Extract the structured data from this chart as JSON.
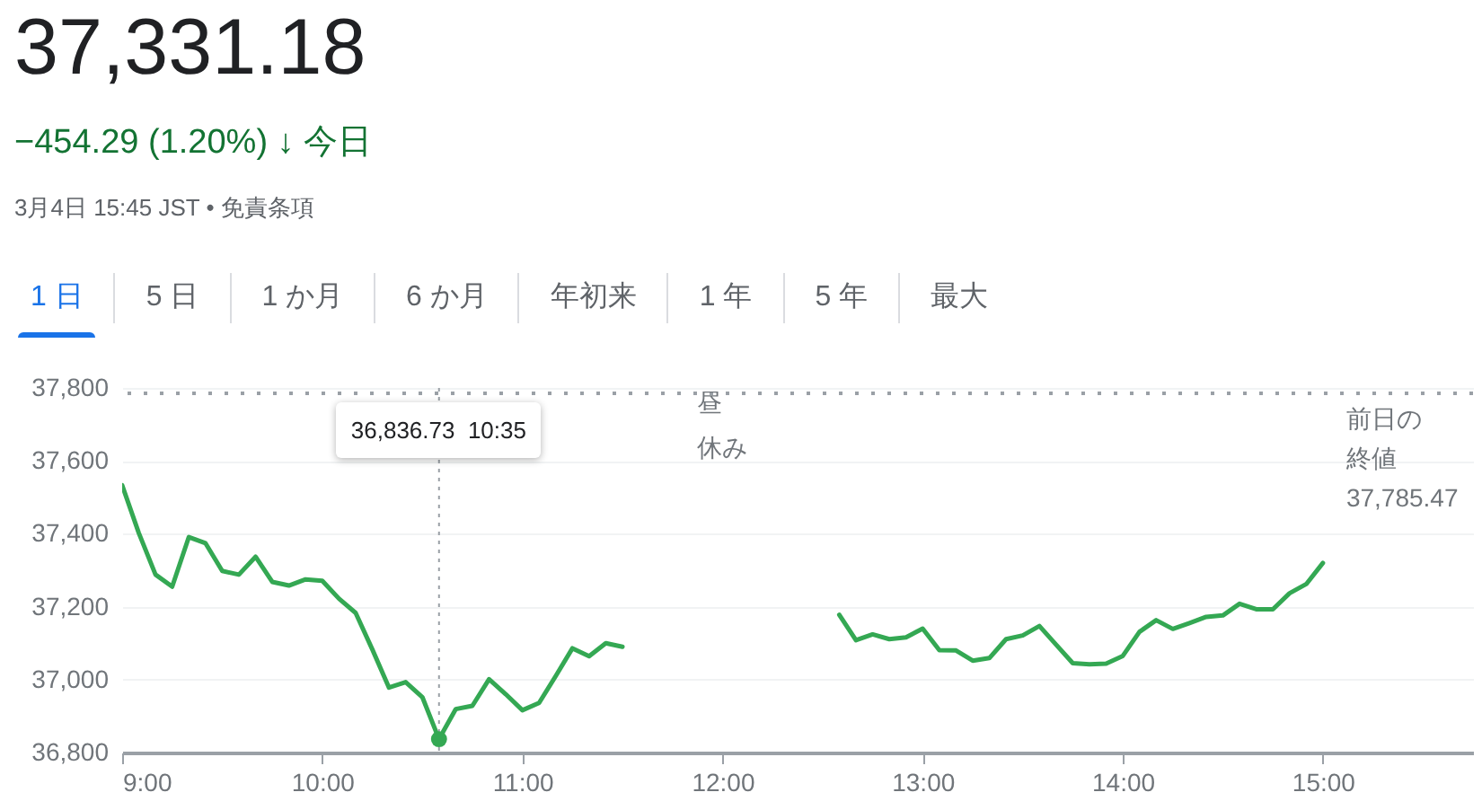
{
  "chart_data": {
    "type": "line",
    "title": "37,331.18",
    "subtitle": "−454.29 (1.20%) ↓ 今日",
    "annotations": [
      "3月4日 15:45 JST • 免責条項",
      "1 日",
      "5 日",
      "1 か月",
      "6 か月",
      "年初来",
      "1 年",
      "5 年",
      "最大",
      "昼",
      "休み",
      {
        "text": "36,836.73  10:35",
        "x": 10.5833,
        "y": 36836.73
      }
    ],
    "x": [
      9,
      9.0833,
      9.1667,
      9.25,
      9.3333,
      9.4167,
      9.5,
      9.5833,
      9.6667,
      9.75,
      9.8333,
      9.9167,
      10,
      10.0833,
      10.1667,
      10.25,
      10.3333,
      10.4167,
      10.5,
      10.5833,
      10.6667,
      10.75,
      10.8333,
      10.9167,
      11,
      11.0833,
      11.1667,
      11.25,
      11.3333,
      11.4167,
      11.5,
      12,
      12.5833,
      12.6667,
      12.75,
      12.8333,
      12.9167,
      13,
      13.0833,
      13.1667,
      13.25,
      13.3333,
      13.4167,
      13.5,
      13.5833,
      13.6667,
      13.75,
      13.8333,
      13.9167,
      14,
      14.0833,
      14.1667,
      14.25,
      14.3333,
      14.4167,
      14.5,
      14.5833,
      14.6667,
      14.75,
      14.8333,
      14.9167,
      15
    ],
    "series": [
      {
        "color": "#34a853",
        "values": [
          37533,
          37402,
          37288,
          37255,
          37391,
          37374,
          37298,
          37288,
          37337,
          37268,
          37258,
          37275,
          37271,
          37222,
          37183,
          37083,
          36978,
          36993,
          36952,
          36836.73,
          36919,
          36928,
          37001,
          36960,
          36916,
          36936,
          37010,
          37086,
          37064,
          37100,
          37090,
          null,
          37178,
          37108,
          37124,
          37111,
          37116,
          37140,
          37081,
          37080,
          37052,
          37059,
          37111,
          37121,
          37147,
          37096,
          37045,
          37042,
          37044,
          37065,
          37131,
          37163,
          37139,
          37155,
          37172,
          37176,
          37208,
          37193,
          37193,
          37237,
          37262,
          37320
        ]
      }
    ],
    "xlim": [
      9,
      15.75
    ],
    "xticks": [
      {
        "value": 9,
        "label": "9:00"
      },
      {
        "value": 10,
        "label": "10:00"
      },
      {
        "value": 11,
        "label": "11:00"
      },
      {
        "value": 12,
        "label": "12:00"
      },
      {
        "value": 13,
        "label": "13:00"
      },
      {
        "value": 14,
        "label": "14:00"
      },
      {
        "value": 15,
        "label": "15:00"
      }
    ],
    "ylim": [
      36800,
      37800
    ],
    "yticks": [
      {
        "value": 36800,
        "label": "36,800"
      },
      {
        "value": 37000,
        "label": "37,000"
      },
      {
        "value": 37200,
        "label": "37,200"
      },
      {
        "value": 37400,
        "label": "37,400"
      },
      {
        "value": 37600,
        "label": "37,600"
      },
      {
        "value": 37800,
        "label": "37,800"
      }
    ],
    "ref_lines": [
      {
        "axis": "y",
        "value": 37785.47,
        "label": "前日の終値 37,785.47",
        "line_style": "dotted",
        "color": "#9aa0a6"
      }
    ],
    "grid": "y",
    "marker": "none",
    "line_style": "solid"
  }
}
